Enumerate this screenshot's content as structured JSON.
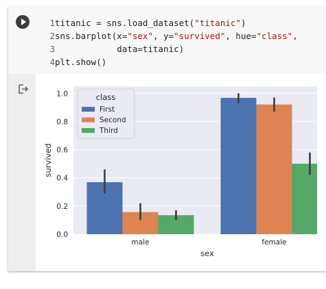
{
  "code_cell": {
    "lines": [
      {
        "num": "1",
        "tokens": [
          {
            "t": "titanic = sns.load_dataset(",
            "k": "plain"
          },
          {
            "t": "\"titanic\"",
            "k": "str"
          },
          {
            "t": ")",
            "k": "plain"
          }
        ]
      },
      {
        "num": "2",
        "tokens": [
          {
            "t": "sns.barplot(x=",
            "k": "plain"
          },
          {
            "t": "\"sex\"",
            "k": "str"
          },
          {
            "t": ", y=",
            "k": "plain"
          },
          {
            "t": "\"survived\"",
            "k": "str"
          },
          {
            "t": ", hue=",
            "k": "plain"
          },
          {
            "t": "\"class\"",
            "k": "str"
          },
          {
            "t": ",",
            "k": "plain"
          }
        ]
      },
      {
        "num": "3",
        "tokens": [
          {
            "t": "            data=titanic)",
            "k": "plain"
          }
        ]
      },
      {
        "num": "4",
        "tokens": [
          {
            "t": "plt.show()",
            "k": "plain"
          }
        ]
      }
    ]
  },
  "icons": {
    "run": "play-icon",
    "output": "output-arrow-icon"
  },
  "colors": {
    "plot_bg": "#eaeaf2",
    "grid": "#ffffff",
    "error_bar": "#3d3d3d",
    "string_token": "#a31515"
  },
  "chart_data": {
    "type": "bar",
    "categories": [
      "male",
      "female"
    ],
    "series": [
      {
        "name": "First",
        "color": "#4c72b0",
        "values": [
          0.369,
          0.968
        ],
        "ci": [
          [
            0.29,
            0.46
          ],
          [
            0.93,
            1.0
          ]
        ]
      },
      {
        "name": "Second",
        "color": "#dd8452",
        "values": [
          0.157,
          0.921
        ],
        "ci": [
          [
            0.1,
            0.22
          ],
          [
            0.87,
            0.97
          ]
        ]
      },
      {
        "name": "Third",
        "color": "#55a868",
        "values": [
          0.135,
          0.5
        ],
        "ci": [
          [
            0.1,
            0.17
          ],
          [
            0.42,
            0.58
          ]
        ]
      }
    ],
    "xlabel": "sex",
    "ylabel": "survived",
    "ylim": [
      0,
      1.05
    ],
    "yticks": [
      "0.0",
      "0.2",
      "0.4",
      "0.6",
      "0.8",
      "1.0"
    ],
    "legend": {
      "title": "class",
      "placement": "top-left"
    },
    "grid": true
  }
}
